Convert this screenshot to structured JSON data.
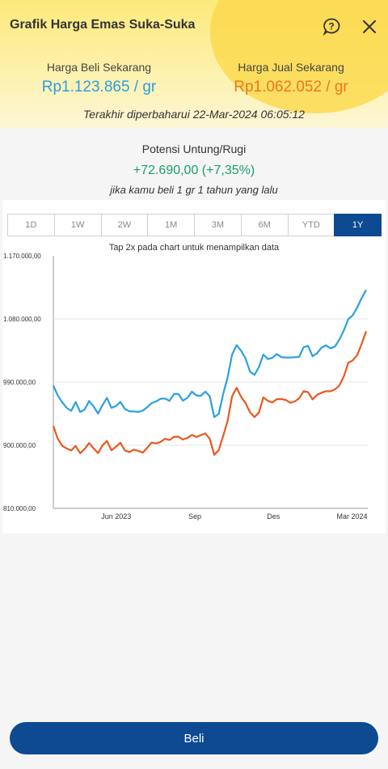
{
  "header": {
    "title": "Grafik Harga Emas Suka-Suka",
    "help_icon": "question-circle-icon",
    "close_icon": "close-icon"
  },
  "prices": {
    "buy_label": "Harga Beli Sekarang",
    "buy_value": "Rp1.123.865 / gr",
    "sell_label": "Harga Jual Sekarang",
    "sell_value": "Rp1.062.052 / gr",
    "updated": "Terakhir diperbaharui 22-Mar-2024 06:05:12"
  },
  "profit": {
    "label": "Potensi Untung/Rugi",
    "value": "+72.690,00 (+7,35%)",
    "note": "jika kamu beli 1 gr 1 tahun yang lalu"
  },
  "tabs": [
    {
      "label": "1D",
      "active": false
    },
    {
      "label": "1W",
      "active": false
    },
    {
      "label": "2W",
      "active": false
    },
    {
      "label": "1M",
      "active": false
    },
    {
      "label": "3M",
      "active": false
    },
    {
      "label": "6M",
      "active": false
    },
    {
      "label": "YTD",
      "active": false
    },
    {
      "label": "1Y",
      "active": true
    }
  ],
  "chart_hint": "Tap 2x pada chart untuk menampilkan data",
  "colors": {
    "buy": "#2b9fe0",
    "sell": "#e8581f",
    "primary": "#0d4a92",
    "profit": "#1a9e6a"
  },
  "chart_data": {
    "type": "line",
    "y_ticks": [
      "1.170.000,00",
      "1.080.000,00",
      "990.000,00",
      "900.000,00",
      "810.000,00"
    ],
    "y_tick_values": [
      1170000,
      1080000,
      990000,
      900000,
      810000
    ],
    "ylim": [
      810000,
      1170000
    ],
    "x_ticks": [
      "Jun 2023",
      "Sep",
      "Des",
      "Mar 2024"
    ],
    "x_tick_positions": [
      0.2,
      0.45,
      0.7,
      0.95
    ],
    "grid": true,
    "series": [
      {
        "values": [
          985000,
          970000,
          960000,
          955000,
          950000,
          958000,
          948000,
          955000,
          960000,
          952000,
          950000,
          958000,
          962000,
          955000,
          960000,
          958000,
          950000,
          952000,
          948000,
          945000,
          950000,
          955000,
          960000,
          962000,
          965000,
          968000,
          965000,
          970000,
          972000,
          968000,
          966000,
          972000,
          975000,
          973000,
          971000,
          970000,
          945000,
          942000,
          970000,
          1000000,
          1030000,
          1040000,
          1035000,
          1025000,
          1005000,
          1000000,
          1010000,
          1030000,
          1025000,
          1022000,
          1028000,
          1030000,
          1025000,
          1020000,
          1028000,
          1030000,
          1035000,
          1040000,
          1032000,
          1030000,
          1035000,
          1045000,
          1040000,
          1038000,
          1050000,
          1065000,
          1080000,
          1085000,
          1095000,
          1110000,
          1123865
        ]
      },
      {
        "values": [
          925000,
          910000,
          900000,
          895000,
          892000,
          898000,
          890000,
          896000,
          900000,
          895000,
          893000,
          898000,
          902000,
          897000,
          900000,
          898000,
          893000,
          895000,
          891000,
          889000,
          893000,
          897000,
          901000,
          903000,
          906000,
          909000,
          907000,
          911000,
          913000,
          910000,
          908000,
          913000,
          916000,
          914000,
          912000,
          912000,
          890000,
          888000,
          912000,
          940000,
          968000,
          978000,
          972000,
          962000,
          944000,
          940000,
          948000,
          968000,
          963000,
          960000,
          966000,
          968000,
          963000,
          958000,
          966000,
          968000,
          972000,
          977000,
          970000,
          968000,
          972000,
          982000,
          977000,
          975000,
          987000,
          1001000,
          1015000,
          1020000,
          1030000,
          1045000,
          1062052
        ]
      }
    ]
  },
  "cta": {
    "label": "Beli"
  }
}
